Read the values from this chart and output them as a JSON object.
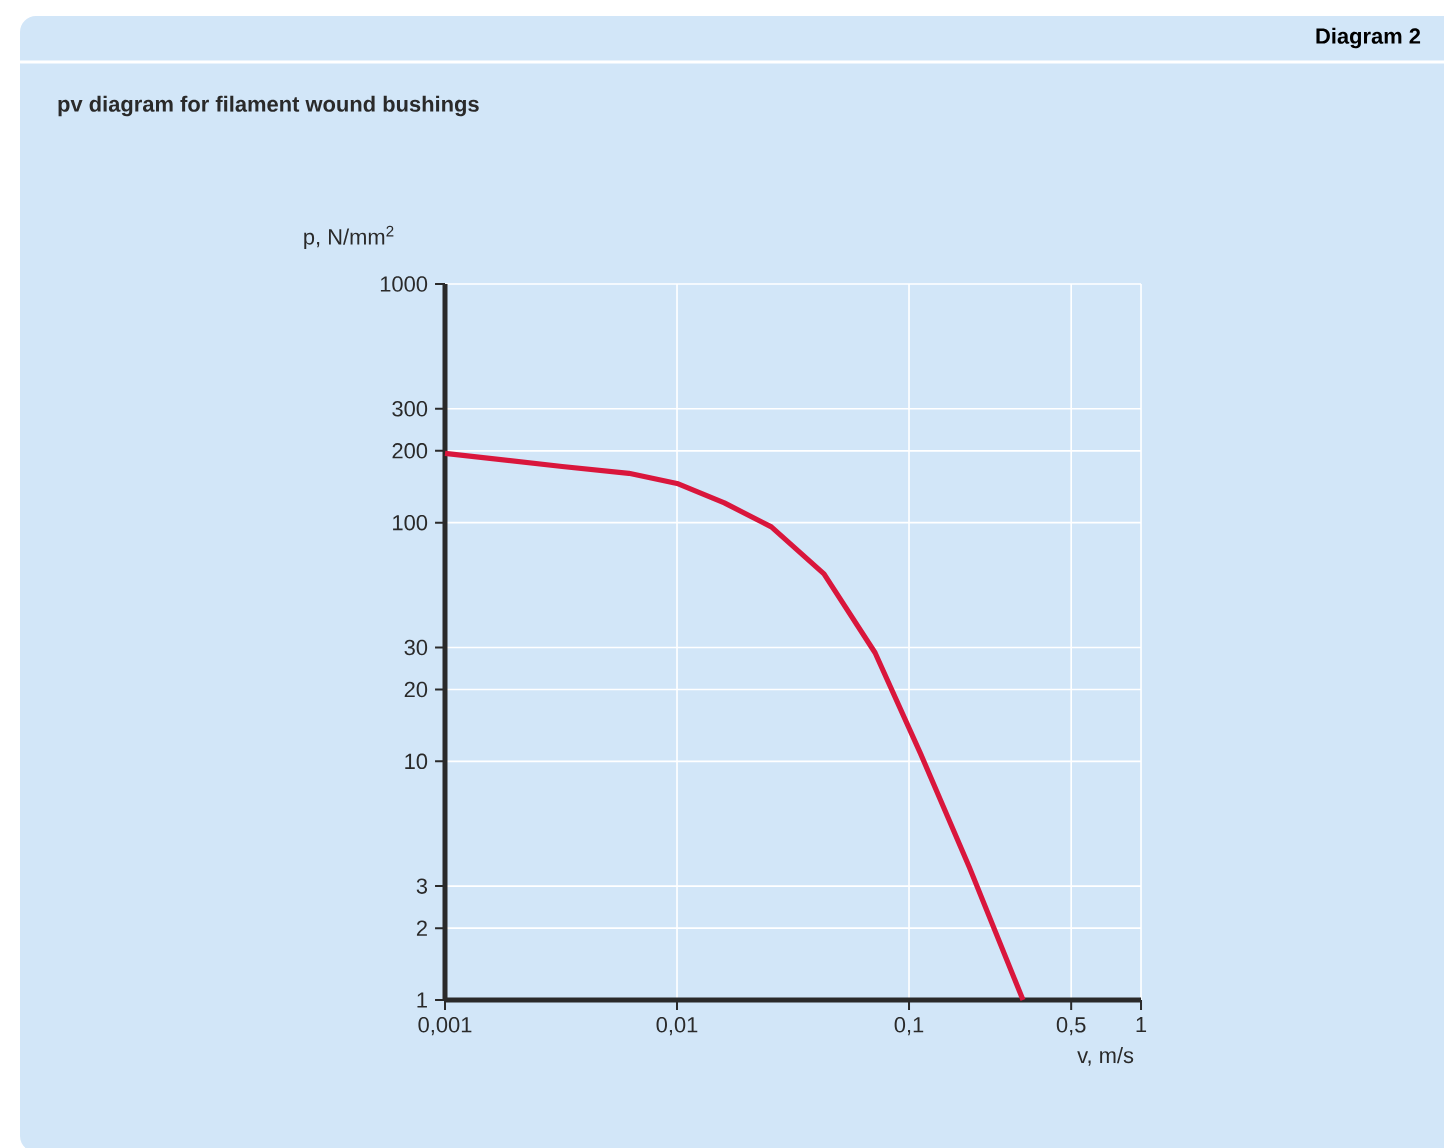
{
  "chart_data": {
    "type": "line",
    "title": "pv diagram for filament wound bushings",
    "annotations": [
      "Diagram 2"
    ],
    "xlabel": "v, m/s",
    "ylabel": "p, N/mm$^{2}$",
    "x": [
      0.001,
      0.0032,
      0.0062,
      0.01,
      0.016,
      0.0255,
      0.043,
      0.0714,
      0.112,
      0.182,
      0.31
    ],
    "series": [
      {
        "color": "#d9163c",
        "values": [
          195,
          172,
          161,
          146,
          121,
          96,
          61,
          28.5,
          10.8,
          3.6,
          1
        ]
      }
    ],
    "log": "xy",
    "grid": true,
    "xlim": [
      0.001,
      1
    ],
    "ylim": [
      1,
      1000
    ],
    "xticks": [
      {
        "value": 0.001,
        "label": "0,001"
      },
      {
        "value": 0.01,
        "label": "0,01"
      },
      {
        "value": 0.1,
        "label": "0,1"
      },
      {
        "value": 0.5,
        "label": "0,5"
      },
      1
    ],
    "yticks": [
      1,
      2,
      3,
      10,
      20,
      30,
      100,
      200,
      300,
      1000
    ]
  }
}
